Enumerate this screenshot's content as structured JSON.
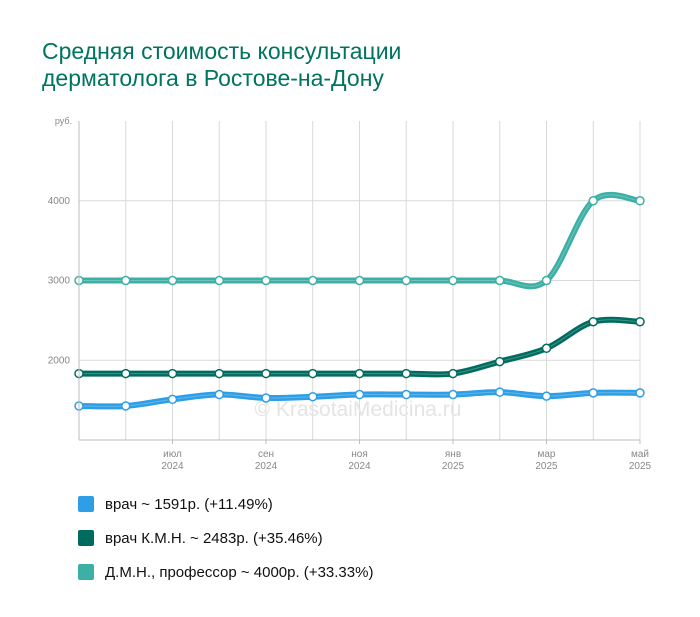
{
  "title": {
    "line1": "Средняя стоимость консультации",
    "line2": "дерматолога в Ростове-на-Дону"
  },
  "watermark": "© KrasotaiMedicina.ru",
  "legend": [
    {
      "label": "врач ~ 1591р. (+11.49%)",
      "color": "#2e9ee6"
    },
    {
      "label": "врач К.М.Н. ~ 2483р. (+35.46%)",
      "color": "#006c5f"
    },
    {
      "label": "Д.М.Н., профессор ~ 4000р. (+33.33%)",
      "color": "#3db0a6"
    }
  ],
  "chart_data": {
    "type": "line",
    "ylabel": "руб.",
    "ylim": [
      1000,
      5000
    ],
    "yticks": [
      "2000",
      "3000",
      "4000"
    ],
    "x": [
      "2024-05",
      "2024-06",
      "2024-07",
      "2024-08",
      "2024-09",
      "2024-10",
      "2024-11",
      "2024-12",
      "2025-01",
      "2025-02",
      "2025-03",
      "2025-04",
      "2025-05"
    ],
    "xticks": [
      {
        "month": "июл",
        "year": "2024",
        "x": "2024-07"
      },
      {
        "month": "сен",
        "year": "2024",
        "x": "2024-09"
      },
      {
        "month": "ноя",
        "year": "2024",
        "x": "2024-11"
      },
      {
        "month": "янв",
        "year": "2025",
        "x": "2025-01"
      },
      {
        "month": "мар",
        "year": "2025",
        "x": "2025-03"
      },
      {
        "month": "май",
        "year": "2025",
        "x": "2025-05"
      }
    ],
    "grid": true,
    "series": [
      {
        "name": "Д.М.Н., профессор",
        "color": "#3db0a6",
        "values": [
          3000,
          3000,
          3000,
          3000,
          3000,
          3000,
          3000,
          3000,
          3000,
          3000,
          3000,
          4000,
          4000
        ]
      },
      {
        "name": "врач К.М.Н.",
        "color": "#006c5f",
        "values": [
          1833,
          1833,
          1833,
          1833,
          1833,
          1833,
          1833,
          1833,
          1833,
          1983,
          2150,
          2483,
          2483
        ]
      },
      {
        "name": "врач",
        "color": "#2e9ee6",
        "values": [
          1427,
          1427,
          1510,
          1570,
          1527,
          1543,
          1570,
          1570,
          1570,
          1600,
          1550,
          1591,
          1591
        ]
      }
    ]
  }
}
